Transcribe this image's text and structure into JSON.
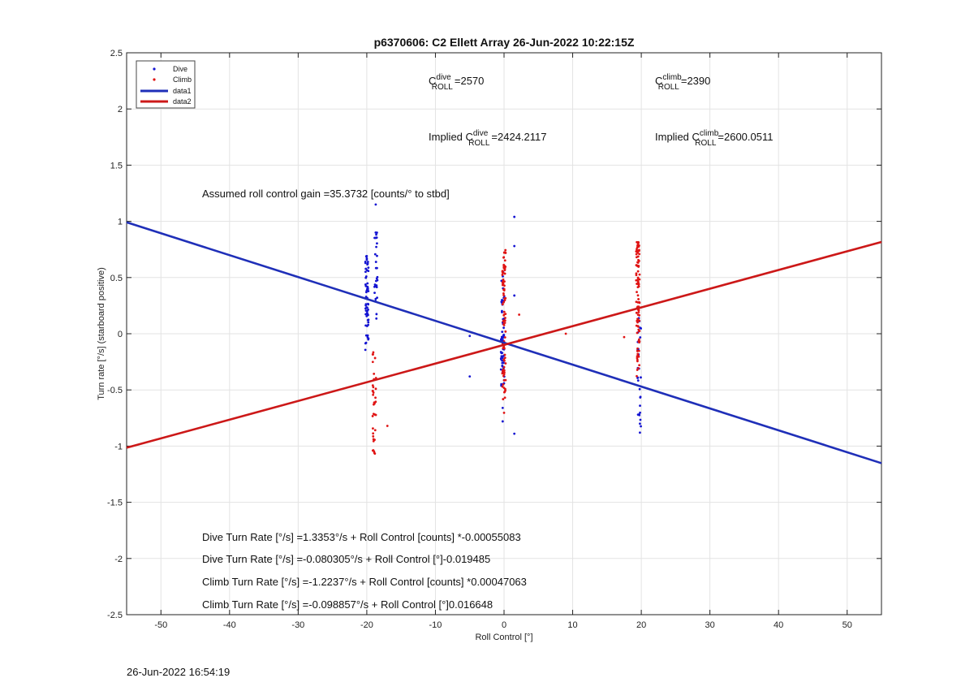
{
  "chart_data": {
    "type": "scatter",
    "title": "p6370606: C2 Ellett Array 26-Jun-2022 10:22:15Z",
    "xlabel": "Roll Control [°]",
    "ylabel": "Turn rate [°/s] (starboard positive)",
    "xlim": [
      -55,
      55
    ],
    "ylim": [
      -2.5,
      2.5
    ],
    "xticks": [
      -50,
      -40,
      -30,
      -20,
      -10,
      0,
      10,
      20,
      30,
      40,
      50
    ],
    "yticks": [
      -2.5,
      -2,
      -1.5,
      -1,
      -0.5,
      0,
      0.5,
      1,
      1.5,
      2,
      2.5
    ],
    "grid": true,
    "legend": {
      "position": "top-left",
      "entries": [
        "Dive",
        "Climb",
        "data1",
        "data2"
      ]
    },
    "colors": {
      "dive": "#1414d2",
      "climb": "#e01414",
      "data1": "#1f2fb8",
      "data2": "#cc1818"
    },
    "series": [
      {
        "name": "data1",
        "kind": "line",
        "slope": -0.019485,
        "intercept": -0.080305
      },
      {
        "name": "data2",
        "kind": "line",
        "slope": 0.016648,
        "intercept": -0.098857
      },
      {
        "name": "Dive",
        "kind": "points",
        "clusters": [
          {
            "x": -20.0,
            "ymin": -0.15,
            "ymax": 0.7,
            "n": 60
          },
          {
            "x": -18.7,
            "ymin": 0.1,
            "ymax": 0.95,
            "n": 28
          },
          {
            "x": -0.2,
            "ymin": -0.5,
            "ymax": 0.55,
            "n": 60
          },
          {
            "x": 19.7,
            "ymin": -1.0,
            "ymax": 0.25,
            "n": 30
          }
        ],
        "extra": [
          {
            "x": -18.7,
            "y": 1.15
          },
          {
            "x": 1.5,
            "y": 1.04
          },
          {
            "x": 1.5,
            "y": 0.78
          },
          {
            "x": 1.5,
            "y": 0.34
          },
          {
            "x": -5,
            "y": -0.02
          },
          {
            "x": -5,
            "y": -0.38
          },
          {
            "x": 1.5,
            "y": -0.89
          },
          {
            "x": 19.8,
            "y": -0.8
          },
          {
            "x": 19.8,
            "y": -0.88
          },
          {
            "x": -0.2,
            "y": -0.78
          },
          {
            "x": -0.2,
            "y": -0.66
          }
        ]
      },
      {
        "name": "Climb",
        "kind": "points",
        "clusters": [
          {
            "x": -18.9,
            "ymin": -1.07,
            "ymax": -0.15,
            "n": 35
          },
          {
            "x": 0.0,
            "ymin": -0.72,
            "ymax": 0.75,
            "n": 90
          },
          {
            "x": 19.5,
            "ymin": -0.4,
            "ymax": 0.82,
            "n": 100
          }
        ],
        "extra": [
          {
            "x": -17,
            "y": -0.82
          },
          {
            "x": 9,
            "y": 0.0
          },
          {
            "x": 17.5,
            "y": -0.03
          },
          {
            "x": 2.2,
            "y": 0.17
          },
          {
            "x": -18.9,
            "y": -1.06
          }
        ]
      }
    ],
    "annotations": {
      "c_dive": {
        "prefix": "C",
        "sup": "dive",
        "sub": "ROLL",
        "value": "=2570"
      },
      "c_climb": {
        "prefix": "C",
        "sup": "climb",
        "sub": "ROLL",
        "value": "=2390"
      },
      "implied_dive": {
        "prefix": "Implied C",
        "sup": "dive",
        "sub": "ROLL",
        "value": "=2424.2117"
      },
      "implied_climb": {
        "prefix": "Implied C",
        "sup": "climb",
        "sub": "ROLL",
        "value": "=2600.0511"
      },
      "gain": "Assumed roll control gain =35.3732 [counts/° to stbd]",
      "eq1": "Dive Turn Rate [°/s] =1.3353°/s + Roll Control [counts] *-0.00055083",
      "eq2": "Dive Turn Rate [°/s] =-0.080305°/s + Roll Control [°]-0.019485",
      "eq3": "Climb Turn Rate [°/s] =-1.2237°/s + Roll Control [counts] *0.00047063",
      "eq4": "Climb Turn Rate [°/s] =-0.098857°/s + Roll Control [°]0.016648"
    }
  },
  "footer": {
    "timestamp": "26-Jun-2022 16:54:19"
  }
}
